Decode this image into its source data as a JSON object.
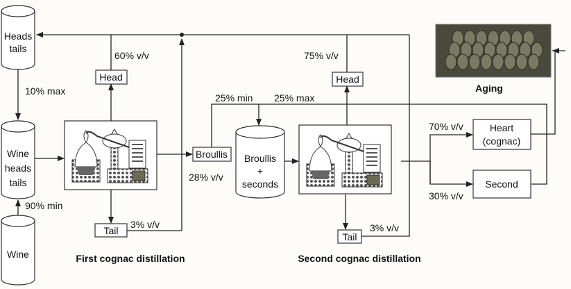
{
  "nodes": {
    "heads_tails": [
      "Heads",
      "tails"
    ],
    "wine_heads_tails": [
      "Wine",
      "heads",
      "tails"
    ],
    "wine": "Wine",
    "head1": "Head",
    "tail1": "Tail",
    "broullis": "Broullis",
    "broullis_seconds": [
      "Broullis",
      "+",
      "seconds"
    ],
    "head2": "Head",
    "tail2": "Tail",
    "heart": [
      "Heart",
      "(cognac)"
    ],
    "second": "Second"
  },
  "labels": {
    "ten_max": "10% max",
    "ninety_min": "90% min",
    "sixty_vv": "60% v/v",
    "three_vv_1": "3% v/v",
    "twentyeight_vv": "28% v/v",
    "twentyfive_min": "25% min",
    "twentyfive_max": "25% max",
    "seventyfive_vv": "75% v/v",
    "three_vv_2": "3% v/v",
    "seventy_vv": "70% v/v",
    "thirty_vv": "30% v/v",
    "aging": "Aging"
  },
  "captions": {
    "first": "First cognac distillation",
    "second": "Second cognac distillation"
  },
  "colors": {
    "line": "#222222",
    "photo": "#4a4a3c"
  }
}
